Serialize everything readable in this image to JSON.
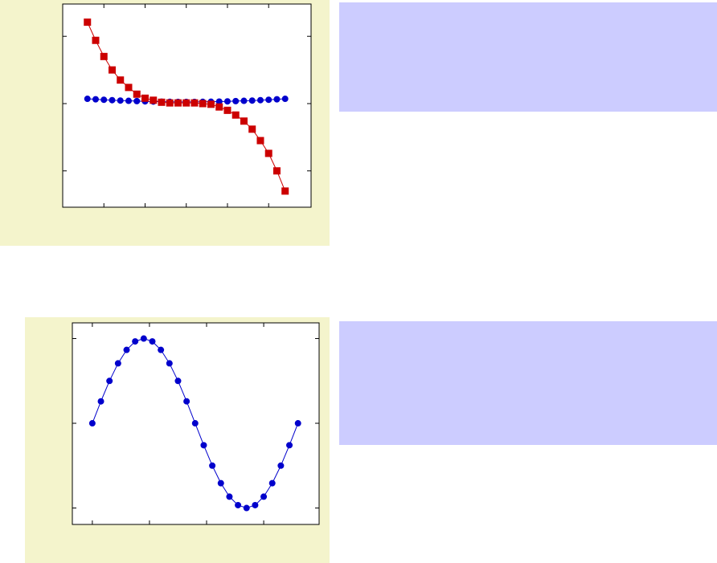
{
  "chart_data": [
    {
      "type": "line",
      "x": [
        -2.4,
        -2.2,
        -2.0,
        -1.8,
        -1.6,
        -1.4,
        -1.2,
        -1.0,
        -0.8,
        -0.6,
        -0.4,
        -0.2,
        0,
        0.2,
        0.4,
        0.6,
        0.8,
        1.0,
        1.2,
        1.4,
        1.6,
        1.8,
        2.0,
        2.2,
        2.4
      ],
      "series": [
        {
          "color": "#0000cc",
          "marker": "circle",
          "values": [
            0.71,
            0.64,
            0.57,
            0.51,
            0.45,
            0.41,
            0.37,
            0.33,
            0.3,
            0.28,
            0.26,
            0.25,
            0.25,
            0.25,
            0.26,
            0.28,
            0.3,
            0.33,
            0.37,
            0.41,
            0.45,
            0.51,
            0.57,
            0.64,
            0.71
          ]
        },
        {
          "color": "#cc0000",
          "marker": "square",
          "values": [
            12.1,
            9.4,
            7.0,
            5.0,
            3.5,
            2.4,
            1.4,
            0.8,
            0.5,
            0.2,
            0.1,
            0.1,
            0.1,
            0.1,
            0,
            -0.1,
            -0.5,
            -1.0,
            -1.7,
            -2.6,
            -3.8,
            -5.5,
            -7.4,
            -10.0,
            -13.0
          ]
        }
      ],
      "xlim": [
        -3,
        3.03
      ],
      "ylim": [
        -15.4,
        14.8
      ],
      "xticks": [
        -2,
        -1,
        0,
        1,
        2
      ],
      "yticks": [
        -10,
        0,
        10
      ]
    },
    {
      "type": "line",
      "x": [
        0,
        15,
        30,
        45,
        60,
        75,
        90,
        105,
        120,
        135,
        150,
        165,
        180,
        195,
        210,
        225,
        240,
        255,
        270,
        285,
        300,
        315,
        330,
        345,
        360
      ],
      "series": [
        {
          "color": "#0000cc",
          "marker": "circle",
          "values": [
            0,
            0.259,
            0.5,
            0.707,
            0.866,
            0.966,
            1,
            0.966,
            0.866,
            0.707,
            0.5,
            0.259,
            0,
            -0.259,
            -0.5,
            -0.707,
            -0.866,
            -0.966,
            -1,
            -0.966,
            -0.866,
            -0.707,
            -0.5,
            -0.259,
            0
          ]
        }
      ],
      "xlim": [
        -35,
        397
      ],
      "ylim": [
        -1.194,
        1.185
      ],
      "xticks": [
        0,
        100,
        200,
        300
      ],
      "yticks": [
        -1,
        0,
        1
      ]
    }
  ]
}
